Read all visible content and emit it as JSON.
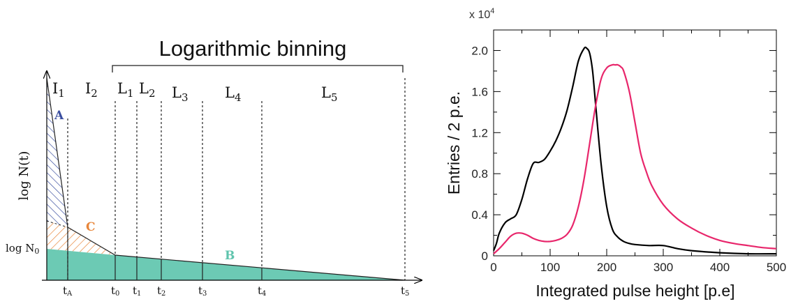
{
  "diagram": {
    "bracket_title": "Logarithmic binning",
    "y_axis_label": "log N(t)",
    "log_n0_label": {
      "main": "log N",
      "sub": "0"
    },
    "intervals": [
      {
        "main": "I",
        "sub": "1"
      },
      {
        "main": "I",
        "sub": "2"
      },
      {
        "main": "L",
        "sub": "1"
      },
      {
        "main": "L",
        "sub": "2"
      },
      {
        "main": "L",
        "sub": "3"
      },
      {
        "main": "L",
        "sub": "4"
      },
      {
        "main": "L",
        "sub": "5"
      }
    ],
    "time_labels": [
      {
        "main": "t",
        "sub": "A"
      },
      {
        "main": "t",
        "sub": "0"
      },
      {
        "main": "t",
        "sub": "1"
      },
      {
        "main": "t",
        "sub": "2"
      },
      {
        "main": "t",
        "sub": "3"
      },
      {
        "main": "t",
        "sub": "4"
      },
      {
        "main": "t",
        "sub": "5"
      }
    ],
    "regions": [
      {
        "label": "A",
        "color": "#3b4fa0"
      },
      {
        "label": "C",
        "color": "#e8863a"
      },
      {
        "label": "B",
        "color": "#5fc4ad"
      }
    ],
    "fill_color": "#6ccab4"
  },
  "chart_data": {
    "type": "line",
    "xlabel": "Integrated pulse height [p.e]",
    "ylabel": "Entries / 2 p.e.",
    "y_multiplier": "x 10",
    "y_multiplier_exp": "4",
    "xlim": [
      0,
      500
    ],
    "ylim": [
      0,
      2.2
    ],
    "x_ticks": [
      0,
      100,
      200,
      300,
      400,
      500
    ],
    "y_ticks": [
      "0",
      "0.4",
      "0.8",
      "1.2",
      "1.6",
      "2.0"
    ],
    "y_tick_values": [
      0,
      0.4,
      0.8,
      1.2,
      1.6,
      2.0
    ],
    "series": [
      {
        "color": "#000000",
        "x": [
          0,
          5,
          10,
          20,
          30,
          40,
          50,
          60,
          70,
          80,
          90,
          100,
          110,
          120,
          130,
          140,
          150,
          160,
          165,
          170,
          175,
          180,
          190,
          200,
          210,
          220,
          230,
          240,
          250,
          275,
          300,
          325,
          350,
          400,
          450,
          500
        ],
        "y": [
          0.05,
          0.12,
          0.22,
          0.32,
          0.36,
          0.4,
          0.55,
          0.75,
          0.9,
          0.91,
          0.94,
          1.02,
          1.12,
          1.25,
          1.42,
          1.65,
          1.9,
          2.02,
          2.02,
          1.97,
          1.8,
          1.5,
          0.9,
          0.48,
          0.26,
          0.18,
          0.14,
          0.12,
          0.11,
          0.1,
          0.1,
          0.07,
          0.05,
          0.03,
          0.02,
          0.02
        ]
      },
      {
        "color": "#e8266b",
        "x": [
          0,
          10,
          20,
          30,
          40,
          50,
          60,
          70,
          80,
          90,
          100,
          110,
          120,
          130,
          140,
          150,
          160,
          170,
          180,
          190,
          200,
          210,
          215,
          220,
          225,
          230,
          240,
          250,
          260,
          270,
          280,
          300,
          325,
          350,
          375,
          400,
          425,
          450,
          475,
          500
        ],
        "y": [
          0.02,
          0.07,
          0.13,
          0.19,
          0.22,
          0.22,
          0.2,
          0.17,
          0.15,
          0.14,
          0.14,
          0.15,
          0.17,
          0.21,
          0.3,
          0.48,
          0.75,
          1.1,
          1.45,
          1.72,
          1.83,
          1.86,
          1.86,
          1.86,
          1.84,
          1.8,
          1.6,
          1.3,
          1.0,
          0.82,
          0.68,
          0.5,
          0.36,
          0.27,
          0.2,
          0.15,
          0.12,
          0.1,
          0.08,
          0.07
        ]
      }
    ]
  }
}
